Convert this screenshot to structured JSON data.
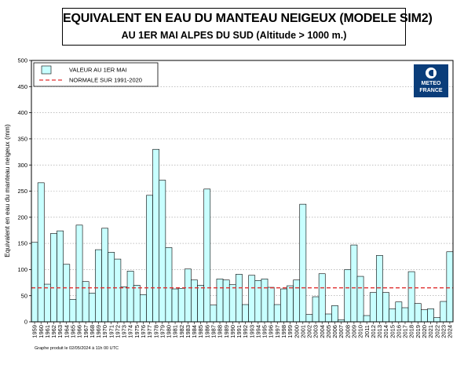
{
  "title": {
    "line1": "EQUIVALENT EN EAU DU MANTEAU NEIGEUX (MODELE SIM2)",
    "line2": "AU 1ER MAI ALPES DU SUD (Altitude > 1000 m.)"
  },
  "footer": "Graphe produit le 02/05/2024 à 11h 00 UTC",
  "logo": {
    "line1": "METEO",
    "line2": "FRANCE",
    "color": "#0a3d7a"
  },
  "colors": {
    "bar_fill": "#c8ffff",
    "bar_stroke": "#000000",
    "normal_line": "#e03030"
  },
  "chart_data": {
    "type": "bar",
    "ylabel": "Equivalent en eau du manteau neigeux (mm)",
    "ylim": [
      0,
      500
    ],
    "yticks": [
      0,
      50,
      100,
      150,
      200,
      250,
      300,
      350,
      400,
      450,
      500
    ],
    "legend": {
      "placement": "top-left",
      "entries": [
        "VALEUR AU 1ER MAI",
        "NORMALE SUR 1991-2020"
      ]
    },
    "normal": 65,
    "categories": [
      "1959",
      "1960",
      "1961",
      "1962",
      "1963",
      "1964",
      "1965",
      "1966",
      "1967",
      "1968",
      "1969",
      "1970",
      "1971",
      "1972",
      "1973",
      "1974",
      "1975",
      "1976",
      "1977",
      "1978",
      "1979",
      "1980",
      "1981",
      "1982",
      "1983",
      "1984",
      "1985",
      "1986",
      "1987",
      "1988",
      "1989",
      "1990",
      "1991",
      "1992",
      "1993",
      "1994",
      "1995",
      "1996",
      "1997",
      "1998",
      "1999",
      "2000",
      "2001",
      "2002",
      "2003",
      "2004",
      "2005",
      "2006",
      "2007",
      "2008",
      "2009",
      "2010",
      "2011",
      "2012",
      "2013",
      "2014",
      "2015",
      "2016",
      "2017",
      "2018",
      "2019",
      "2020",
      "2021",
      "2022",
      "2023",
      "2024"
    ],
    "series": [
      {
        "name": "VALEUR AU 1ER MAI",
        "values": [
          152,
          266,
          72,
          169,
          174,
          110,
          43,
          185,
          77,
          55,
          138,
          179,
          133,
          120,
          67,
          97,
          70,
          52,
          242,
          330,
          271,
          142,
          63,
          64,
          101,
          80,
          70,
          254,
          32,
          82,
          80,
          71,
          91,
          33,
          89,
          79,
          82,
          66,
          33,
          63,
          69,
          80,
          225,
          14,
          48,
          92,
          15,
          31,
          4,
          100,
          147,
          87,
          12,
          56,
          127,
          56,
          25,
          38,
          27,
          96,
          35,
          23,
          25,
          8,
          39,
          134
        ]
      }
    ]
  }
}
